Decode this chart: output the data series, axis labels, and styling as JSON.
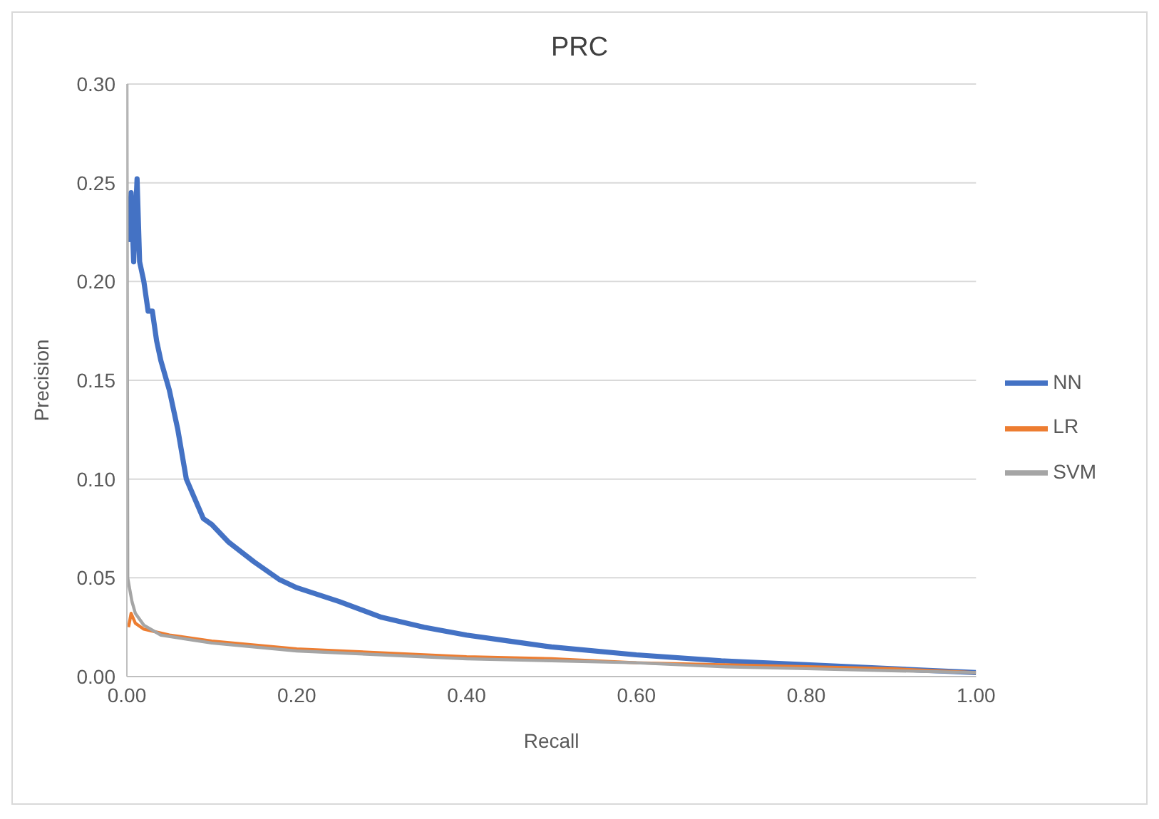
{
  "chart_data": {
    "type": "line",
    "title": "PRC",
    "xlabel": "Recall",
    "ylabel": "Precision",
    "xlim": [
      0,
      1
    ],
    "ylim": [
      0,
      0.3
    ],
    "xticks": [
      {
        "value": 0,
        "label": "0.00"
      },
      {
        "value": 0.2,
        "label": "0.20"
      },
      {
        "value": 0.4,
        "label": "0.40"
      },
      {
        "value": 0.6,
        "label": "0.60"
      },
      {
        "value": 0.8,
        "label": "0.80"
      },
      {
        "value": 1,
        "label": "1.00"
      }
    ],
    "yticks": [
      {
        "value": 0,
        "label": "0.00"
      },
      {
        "value": 0.05,
        "label": "0.05"
      },
      {
        "value": 0.1,
        "label": "0.10"
      },
      {
        "value": 0.15,
        "label": "0.15"
      },
      {
        "value": 0.2,
        "label": "0.20"
      },
      {
        "value": 0.25,
        "label": "0.25"
      },
      {
        "value": 0.3,
        "label": "0.30"
      }
    ],
    "grid": "y",
    "legend": "right",
    "marker": "none",
    "line_style": "solid",
    "series": [
      {
        "name": "NN",
        "color": "#4472c4",
        "x": [
          0.002,
          0.005,
          0.008,
          0.012,
          0.015,
          0.02,
          0.025,
          0.03,
          0.035,
          0.04,
          0.05,
          0.06,
          0.07,
          0.08,
          0.09,
          0.1,
          0.12,
          0.15,
          0.18,
          0.2,
          0.25,
          0.3,
          0.35,
          0.4,
          0.45,
          0.5,
          0.6,
          0.7,
          0.8,
          0.9,
          1.0
        ],
        "values": [
          0.22,
          0.245,
          0.21,
          0.252,
          0.21,
          0.2,
          0.185,
          0.185,
          0.17,
          0.16,
          0.145,
          0.125,
          0.1,
          0.09,
          0.08,
          0.077,
          0.068,
          0.058,
          0.049,
          0.045,
          0.038,
          0.03,
          0.025,
          0.021,
          0.018,
          0.015,
          0.011,
          0.008,
          0.006,
          0.004,
          0.002
        ]
      },
      {
        "name": "LR",
        "color": "#ed7d31",
        "x": [
          0.002,
          0.005,
          0.01,
          0.02,
          0.05,
          0.1,
          0.2,
          0.3,
          0.4,
          0.5,
          0.6,
          0.7,
          0.8,
          0.9,
          1.0
        ],
        "values": [
          0.025,
          0.032,
          0.027,
          0.024,
          0.021,
          0.018,
          0.014,
          0.012,
          0.01,
          0.009,
          0.007,
          0.006,
          0.005,
          0.004,
          0.002
        ]
      },
      {
        "name": "SVM",
        "color": "#a5a5a5",
        "x": [
          0,
          0.001,
          0.003,
          0.006,
          0.01,
          0.02,
          0.04,
          0.1,
          0.2,
          0.3,
          0.4,
          0.5,
          0.6,
          0.7,
          0.8,
          0.9,
          1.0
        ],
        "values": [
          0.3,
          0.05,
          0.045,
          0.038,
          0.032,
          0.026,
          0.021,
          0.017,
          0.013,
          0.011,
          0.009,
          0.008,
          0.007,
          0.005,
          0.004,
          0.003,
          0.002
        ]
      }
    ]
  }
}
